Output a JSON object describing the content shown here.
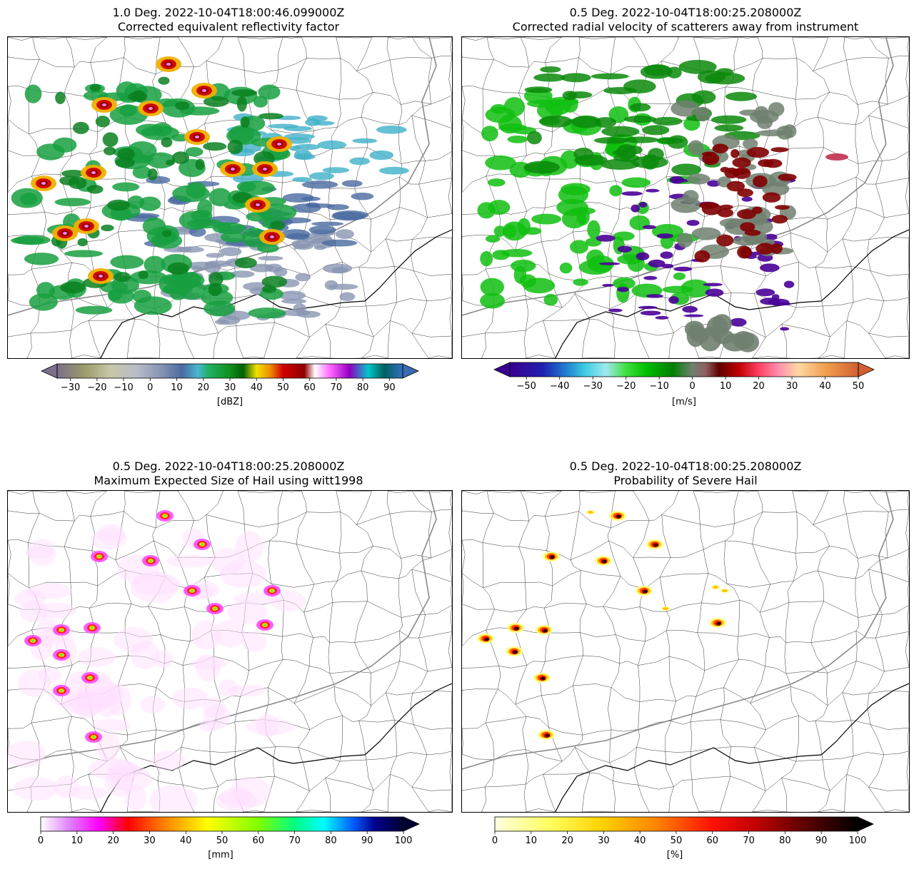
{
  "panels": [
    {
      "id": "reflectivity",
      "title_line1": "1.0 Deg. 2022-10-04T18:00:46.099000Z",
      "title_line2": "Corrected equivalent reflectivity factor",
      "colorbar": {
        "unit": "[dBZ]",
        "min": -35,
        "max": 95,
        "extend": "both",
        "ticks": [
          "−30",
          "−20",
          "−10",
          "0",
          "10",
          "20",
          "30",
          "40",
          "50",
          "60",
          "70",
          "80",
          "90"
        ],
        "tick_values": [
          -30,
          -20,
          -10,
          0,
          10,
          20,
          30,
          40,
          50,
          60,
          70,
          80,
          90
        ],
        "stops": [
          {
            "v": -35,
            "c": "#7b6f8a"
          },
          {
            "v": -25,
            "c": "#9a9a6a"
          },
          {
            "v": -15,
            "c": "#c8c8a8"
          },
          {
            "v": -5,
            "c": "#b8bcc8"
          },
          {
            "v": 5,
            "c": "#8090b0"
          },
          {
            "v": 12,
            "c": "#4a6aa0"
          },
          {
            "v": 18,
            "c": "#48b8d0"
          },
          {
            "v": 22,
            "c": "#20b060"
          },
          {
            "v": 30,
            "c": "#109020"
          },
          {
            "v": 35,
            "c": "#006000"
          },
          {
            "v": 40,
            "c": "#f0e000"
          },
          {
            "v": 45,
            "c": "#f09000"
          },
          {
            "v": 50,
            "c": "#d00000"
          },
          {
            "v": 58,
            "c": "#900000"
          },
          {
            "v": 62,
            "c": "#ffffff"
          },
          {
            "v": 68,
            "c": "#ff60ff"
          },
          {
            "v": 75,
            "c": "#9000c0"
          },
          {
            "v": 82,
            "c": "#00c8c8"
          },
          {
            "v": 88,
            "c": "#006060"
          },
          {
            "v": 95,
            "c": "#3070c0"
          }
        ],
        "under_color": "#7b6f8a",
        "over_color": "#3a6ab0"
      },
      "echo_palette": [
        "#8a96b2",
        "#4a6aa0",
        "#40b0c8",
        "#18a040",
        "#0a8020",
        "#f0b000",
        "#d00000",
        "#900000",
        "#ff80ff"
      ]
    },
    {
      "id": "velocity",
      "title_line1": "0.5 Deg. 2022-10-04T18:00:25.208000Z",
      "title_line2": "Corrected radial velocity of scatterers away from instrument",
      "colorbar": {
        "unit": "[m/s]",
        "min": -55,
        "max": 50,
        "extend": "both",
        "ticks": [
          "−50",
          "−40",
          "−30",
          "−20",
          "−10",
          "0",
          "10",
          "20",
          "30",
          "40",
          "50"
        ],
        "tick_values": [
          -50,
          -40,
          -30,
          -20,
          -10,
          0,
          10,
          20,
          30,
          40,
          50
        ],
        "stops": [
          {
            "v": -55,
            "c": "#3a0090"
          },
          {
            "v": -45,
            "c": "#2020b0"
          },
          {
            "v": -38,
            "c": "#2080d0"
          },
          {
            "v": -32,
            "c": "#40d0e0"
          },
          {
            "v": -26,
            "c": "#a0e8f0"
          },
          {
            "v": -20,
            "c": "#40e040"
          },
          {
            "v": -14,
            "c": "#00c000"
          },
          {
            "v": -6,
            "c": "#008000"
          },
          {
            "v": 0,
            "c": "#708070"
          },
          {
            "v": 4,
            "c": "#906060"
          },
          {
            "v": 8,
            "c": "#600000"
          },
          {
            "v": 14,
            "c": "#c00000"
          },
          {
            "v": 20,
            "c": "#ff4060"
          },
          {
            "v": 26,
            "c": "#ff90b0"
          },
          {
            "v": 32,
            "c": "#ffd8a0"
          },
          {
            "v": 40,
            "c": "#f0a050"
          },
          {
            "v": 50,
            "c": "#d06030"
          }
        ],
        "under_color": "#3a0090",
        "over_color": "#d06030"
      },
      "echo_palette": [
        "#4a0098",
        "#10c010",
        "#0a8a0a",
        "#708070",
        "#800000",
        "#c03050"
      ]
    },
    {
      "id": "mesh",
      "title_line1": "0.5 Deg. 2022-10-04T18:00:25.208000Z",
      "title_line2": "Maximum Expected Size of Hail using witt1998",
      "colorbar": {
        "unit": "[mm]",
        "min": 0,
        "max": 100,
        "extend": "max",
        "ticks": [
          "0",
          "10",
          "20",
          "30",
          "40",
          "50",
          "60",
          "70",
          "80",
          "90",
          "100"
        ],
        "tick_values": [
          0,
          10,
          20,
          30,
          40,
          50,
          60,
          70,
          80,
          90,
          100
        ],
        "stops": [
          {
            "v": 0,
            "c": "#ffffff"
          },
          {
            "v": 8,
            "c": "#e080ff"
          },
          {
            "v": 16,
            "c": "#ff00ff"
          },
          {
            "v": 24,
            "c": "#ff0000"
          },
          {
            "v": 34,
            "c": "#ff8000"
          },
          {
            "v": 46,
            "c": "#ffff00"
          },
          {
            "v": 60,
            "c": "#80ff00"
          },
          {
            "v": 70,
            "c": "#00ff80"
          },
          {
            "v": 78,
            "c": "#00ffff"
          },
          {
            "v": 86,
            "c": "#0060ff"
          },
          {
            "v": 92,
            "c": "#000090"
          },
          {
            "v": 100,
            "c": "#000030"
          }
        ],
        "under_color": "#ffffff",
        "over_color": "#000030"
      },
      "echo_palette": [
        "#ffe0ff",
        "#ff40ff",
        "#ff2020",
        "#ffd000",
        "#40ff40",
        "#00c0ff"
      ]
    },
    {
      "id": "posh",
      "title_line1": "0.5 Deg. 2022-10-04T18:00:25.208000Z",
      "title_line2": "Probability of Severe Hail",
      "colorbar": {
        "unit": "[%]",
        "min": 0,
        "max": 100,
        "extend": "max",
        "ticks": [
          "0",
          "10",
          "20",
          "30",
          "40",
          "50",
          "60",
          "70",
          "80",
          "90",
          "100"
        ],
        "tick_values": [
          0,
          10,
          20,
          30,
          40,
          50,
          60,
          70,
          80,
          90,
          100
        ],
        "stops": [
          {
            "v": 0,
            "c": "#ffffe0"
          },
          {
            "v": 15,
            "c": "#ffff60"
          },
          {
            "v": 30,
            "c": "#ffd000"
          },
          {
            "v": 45,
            "c": "#ff8000"
          },
          {
            "v": 60,
            "c": "#ff1000"
          },
          {
            "v": 72,
            "c": "#c00000"
          },
          {
            "v": 85,
            "c": "#600000"
          },
          {
            "v": 100,
            "c": "#000000"
          }
        ],
        "under_color": "#ffffe0",
        "over_color": "#000000"
      },
      "echo_palette": [
        "#ffff80",
        "#ffc000",
        "#ff4000",
        "#a00000",
        "#200000"
      ]
    }
  ]
}
